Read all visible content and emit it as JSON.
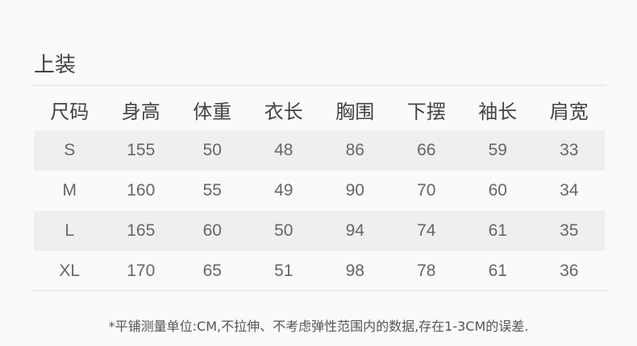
{
  "title": "上装",
  "table": {
    "headers": [
      "尺码",
      "身高",
      "体重",
      "衣长",
      "胸围",
      "下摆",
      "袖长",
      "肩宽"
    ],
    "rows": [
      [
        "S",
        "155",
        "50",
        "48",
        "86",
        "66",
        "59",
        "33"
      ],
      [
        "M",
        "160",
        "55",
        "49",
        "90",
        "70",
        "60",
        "34"
      ],
      [
        "L",
        "165",
        "60",
        "50",
        "94",
        "74",
        "61",
        "35"
      ],
      [
        "XL",
        "170",
        "65",
        "51",
        "98",
        "78",
        "61",
        "36"
      ]
    ]
  },
  "note": "*平铺测量单位:CM,不拉伸、不考虑弹性范围内的数据,存在1-3CM的误差.",
  "colors": {
    "background": "#fafafa",
    "row_shade": "#efefef",
    "text": "#555555"
  }
}
